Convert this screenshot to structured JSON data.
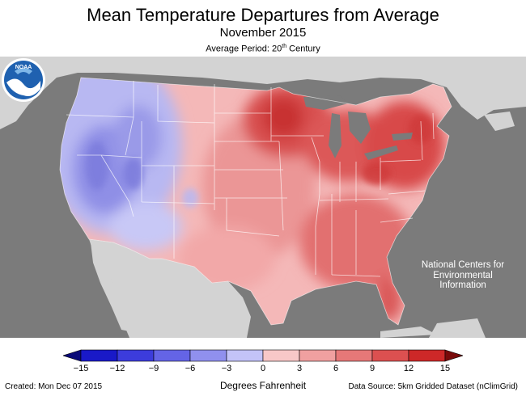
{
  "header": {
    "title": "Mean Temperature Departures from Average",
    "subtitle": "November 2015",
    "period_prefix": "Average Period: 20",
    "period_sup": "th",
    "period_suffix": " Century"
  },
  "logo": {
    "name": "NOAA",
    "org_line1": "National Centers for",
    "org_line2": "Environmental",
    "org_line3": "Information"
  },
  "legend": {
    "title": "Degrees Fahrenheit",
    "ticks": [
      "−15",
      "−12",
      "−9",
      "−6",
      "−3",
      "0",
      "3",
      "6",
      "9",
      "12",
      "15"
    ],
    "colors": [
      "#1919c8",
      "#3c3cdc",
      "#6464e6",
      "#9090ee",
      "#c3c3f8",
      "#f8c8c8",
      "#f0a0a0",
      "#e67878",
      "#dc5050",
      "#cd2828"
    ],
    "arrow_low_color": "#0a0a78",
    "arrow_high_color": "#780a0a"
  },
  "footer": {
    "created": "Created: Mon Dec 07 2015",
    "source": "Data Source: 5km Gridded Dataset (nClimGrid)"
  },
  "colors": {
    "background_land": "#d3d3d3",
    "water": "#7b7b7b"
  }
}
